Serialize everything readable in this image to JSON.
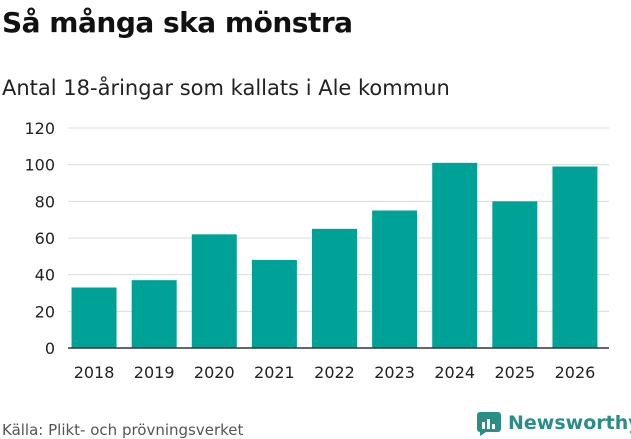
{
  "header": {
    "title": "Så många ska mönstra",
    "subtitle": "Antal 18-åringar som kallats i Ale kommun"
  },
  "footer": {
    "source": "Källa: Plikt- och prövningsverket",
    "brand": "Newsworthy"
  },
  "colors": {
    "bar": "#00a196",
    "grid": "#dcdcdc",
    "brand": "#2a8d86"
  },
  "chart_data": {
    "type": "bar",
    "title": "Så många ska mönstra",
    "subtitle": "Antal 18-åringar som kallats i Ale kommun",
    "xlabel": "",
    "ylabel": "",
    "categories": [
      "2018",
      "2019",
      "2020",
      "2021",
      "2022",
      "2023",
      "2024",
      "2025",
      "2026"
    ],
    "values": [
      33,
      37,
      62,
      48,
      65,
      75,
      101,
      80,
      99
    ],
    "ylim": [
      0,
      120
    ],
    "yticks": [
      0,
      20,
      40,
      60,
      80,
      100,
      120
    ],
    "grid": true
  }
}
